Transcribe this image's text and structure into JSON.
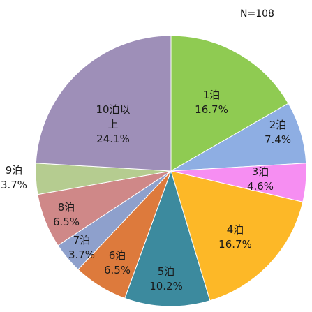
{
  "chart_data": {
    "type": "pie",
    "note": "N=108",
    "start_angle_deg": 0,
    "direction": "clockwise",
    "slices": [
      {
        "name": "1泊",
        "label_lines": [
          "1泊"
        ],
        "pct": "16.7%",
        "value": 16.7,
        "color": "#8fcb52"
      },
      {
        "name": "2泊",
        "label_lines": [
          "2泊"
        ],
        "pct": "7.4%",
        "value": 7.4,
        "color": "#8eaee3"
      },
      {
        "name": "3泊",
        "label_lines": [
          "3泊"
        ],
        "pct": "4.6%",
        "value": 4.6,
        "color": "#f68ef2"
      },
      {
        "name": "4泊",
        "label_lines": [
          "4泊"
        ],
        "pct": "16.7%",
        "value": 16.7,
        "color": "#fdb827"
      },
      {
        "name": "5泊",
        "label_lines": [
          "5泊"
        ],
        "pct": "10.2%",
        "value": 10.2,
        "color": "#3c8a9e"
      },
      {
        "name": "6泊",
        "label_lines": [
          "6泊"
        ],
        "pct": "6.5%",
        "value": 6.5,
        "color": "#dd7a3c"
      },
      {
        "name": "7泊",
        "label_lines": [
          "7泊"
        ],
        "pct": "3.7%",
        "value": 3.7,
        "color": "#8ea0cc"
      },
      {
        "name": "8泊",
        "label_lines": [
          "8泊"
        ],
        "pct": "6.5%",
        "value": 6.5,
        "color": "#cf8888"
      },
      {
        "name": "9泊",
        "label_lines": [
          "9泊"
        ],
        "pct": "3.7%",
        "value": 3.7,
        "color": "#b5cc90"
      },
      {
        "name": "10泊以上",
        "label_lines": [
          "10泊以",
          "上"
        ],
        "pct": "24.1%",
        "value": 24.1,
        "color": "#9e8fb8"
      }
    ]
  }
}
